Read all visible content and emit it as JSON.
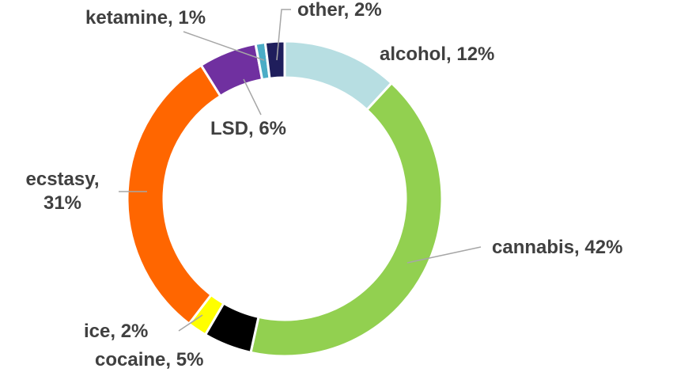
{
  "chart_data": {
    "type": "donut",
    "values": [
      12,
      42,
      5,
      2,
      31,
      6,
      1,
      2
    ],
    "value_labels": [
      "alcohol, 12%",
      "cannabis, 42%",
      "cocaine, 5%",
      "ice, 2%",
      "ecstasy, 31%",
      "LSD, 6%",
      "ketamine, 1%",
      "other, 2%"
    ],
    "colors": [
      "#b7dee2",
      "#92d050",
      "#000000",
      "#ffff00",
      "#ff6600",
      "#7030a0",
      "#4bacc6",
      "#1f1e5c"
    ]
  }
}
